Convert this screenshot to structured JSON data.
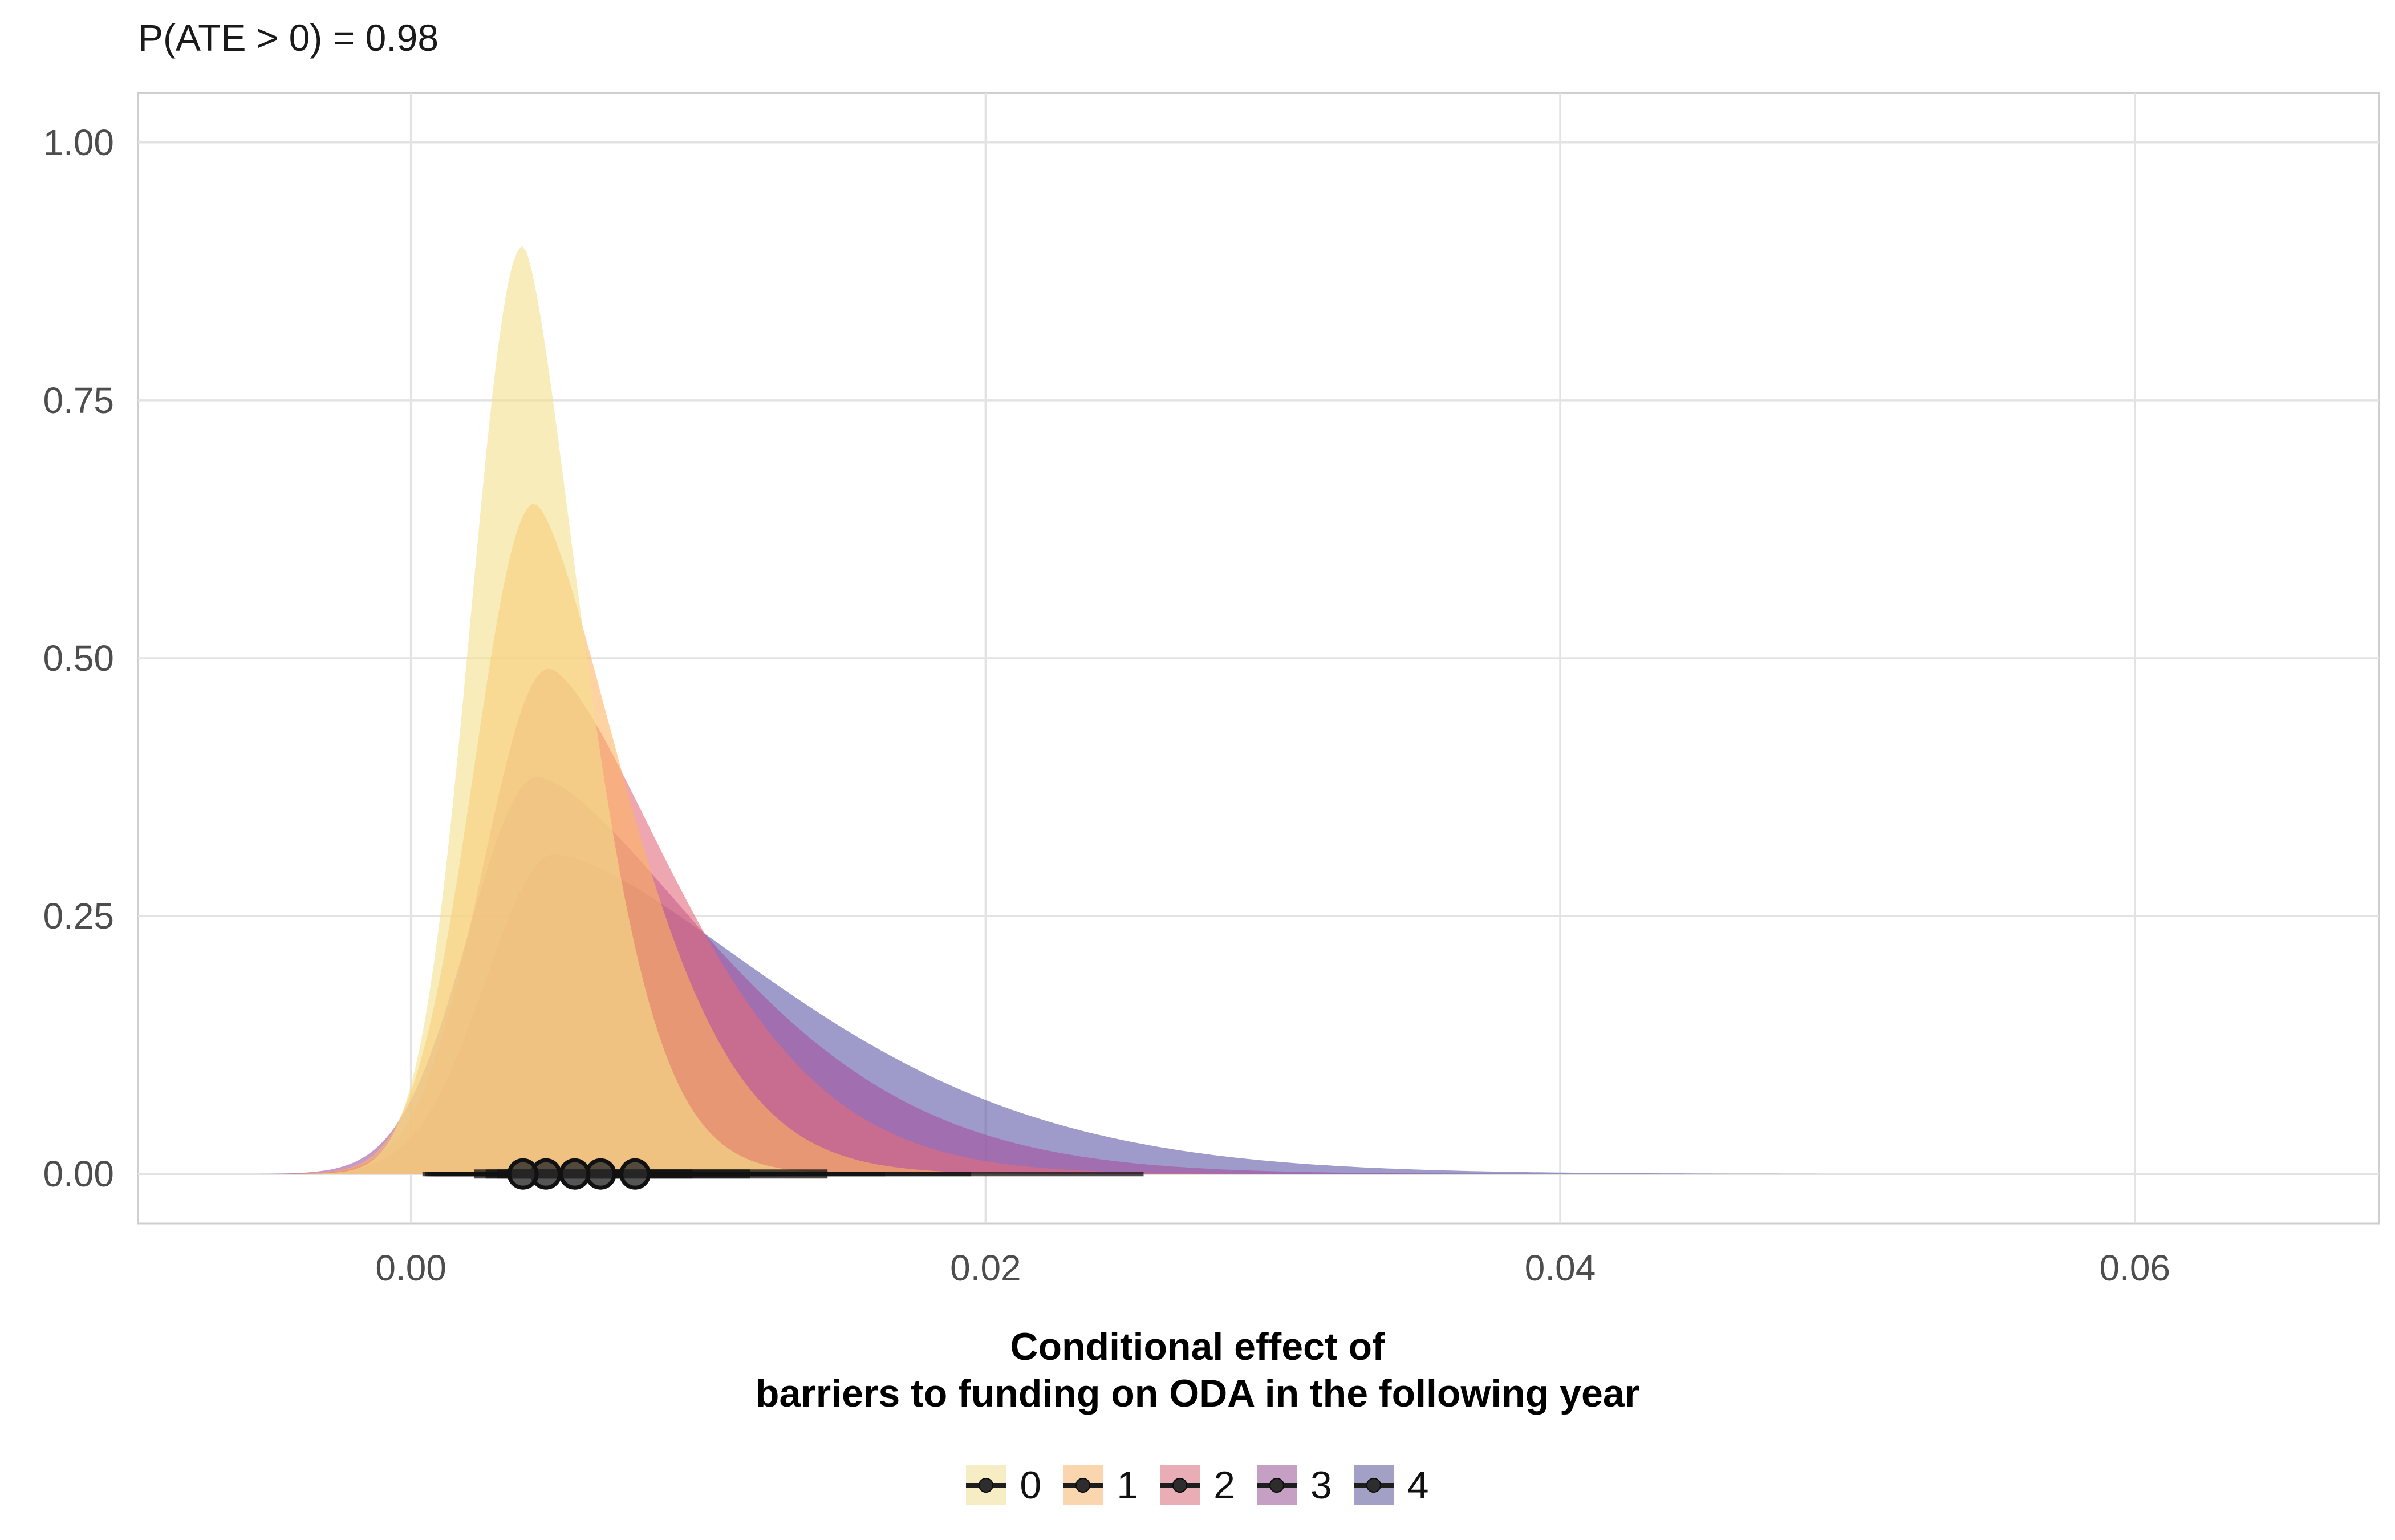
{
  "subtitle": "P(ATE > 0) = 0.98",
  "chart_data": {
    "type": "area",
    "subtype": "half-eye density",
    "title": "",
    "xlabel": "Conditional effect of\nbarriers to funding on ODA in the following year",
    "ylabel": "",
    "xlim": [
      -0.0095,
      0.0685
    ],
    "ylim": [
      -0.048,
      1.048
    ],
    "x_ticks": [
      0.0,
      0.02,
      0.04,
      0.06
    ],
    "x_tick_labels": [
      "0.00",
      "0.02",
      "0.04",
      "0.06"
    ],
    "y_ticks": [
      0.0,
      0.25,
      0.5,
      0.75,
      1.0
    ],
    "y_tick_labels": [
      "0.00",
      "0.25",
      "0.50",
      "0.75",
      "1.00"
    ],
    "grid": true,
    "legend_position": "bottom",
    "series": [
      {
        "name": "0",
        "color": "#f3e08c",
        "mode": 0.0039,
        "peak": 0.9,
        "left_scale": 0.0018,
        "right_scale": 0.002,
        "point": 0.0039,
        "interval_66": [
          0.0022,
          0.006
        ],
        "interval_95": [
          0.0004,
          0.0092
        ]
      },
      {
        "name": "1",
        "color": "#fdb462",
        "mode": 0.0043,
        "peak": 0.65,
        "left_scale": 0.0021,
        "right_scale": 0.003,
        "point": 0.0047,
        "interval_66": [
          0.0026,
          0.0075
        ],
        "interval_95": [
          0.0005,
          0.0128
        ]
      },
      {
        "name": "2",
        "color": "#e36b7c",
        "mode": 0.0048,
        "peak": 0.49,
        "left_scale": 0.0023,
        "right_scale": 0.0042,
        "point": 0.0057,
        "interval_66": [
          0.003,
          0.0098
        ],
        "interval_95": [
          0.0006,
          0.0165
        ]
      },
      {
        "name": "3",
        "color": "#a353a0",
        "mode": 0.0044,
        "peak": 0.385,
        "left_scale": 0.0024,
        "right_scale": 0.0058,
        "point": 0.0066,
        "interval_66": [
          0.0033,
          0.0118
        ],
        "interval_95": [
          0.0007,
          0.0195
        ]
      },
      {
        "name": "4",
        "color": "#5d57a5",
        "mode": 0.005,
        "peak": 0.31,
        "left_scale": 0.0024,
        "right_scale": 0.0075,
        "point": 0.0078,
        "interval_66": [
          0.0035,
          0.0145
        ],
        "interval_95": [
          0.0008,
          0.0255
        ]
      }
    ]
  }
}
